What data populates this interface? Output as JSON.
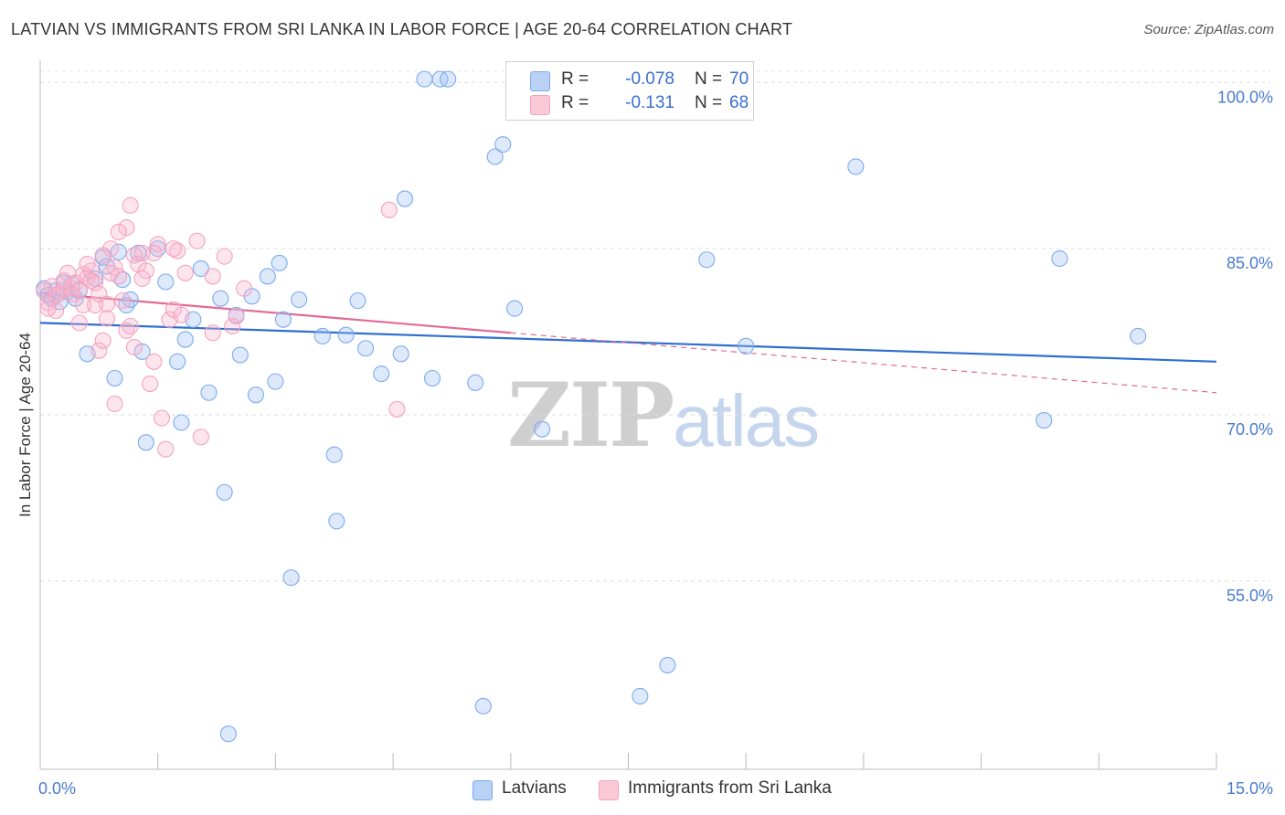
{
  "title": "LATVIAN VS IMMIGRANTS FROM SRI LANKA IN LABOR FORCE | AGE 20-64 CORRELATION CHART",
  "source": "Source: ZipAtlas.com",
  "watermark": {
    "zip": "ZIP",
    "atlas": "atlas"
  },
  "legend": {
    "latvian": {
      "r_label": "R =",
      "r_value": "-0.078",
      "n_label": "N =",
      "n_value": "70"
    },
    "srilanka": {
      "r_label": "R =",
      "r_value": "-0.131",
      "n_label": "N =",
      "n_value": "68"
    }
  },
  "chart_data": {
    "type": "scatter",
    "title": "LATVIAN VS IMMIGRANTS FROM SRI LANKA IN LABOR FORCE | AGE 20-64 CORRELATION CHART",
    "xlabel": "",
    "ylabel": "In Labor Force | Age 20-64",
    "xlim": [
      0,
      15
    ],
    "ylim": [
      38,
      102
    ],
    "x_tick_labels": [
      "0.0%",
      "15.0%"
    ],
    "y_ticks": [
      55,
      70,
      85,
      100
    ],
    "y_tick_labels": [
      "55.0%",
      "70.0%",
      "85.0%",
      "100.0%"
    ],
    "grid": true,
    "legend_position": "bottom-center",
    "series": [
      {
        "name": "Latvians",
        "color": "#7aaaf0",
        "trend": {
          "x": [
            0,
            15
          ],
          "y": [
            78.3,
            74.8
          ],
          "color": "#2f6fcf"
        },
        "points": [
          [
            0.05,
            81.4
          ],
          [
            0.1,
            80.8
          ],
          [
            0.15,
            80.5
          ],
          [
            0.2,
            81.2
          ],
          [
            0.25,
            80.2
          ],
          [
            0.35,
            81.1
          ],
          [
            0.4,
            81.8
          ],
          [
            0.45,
            80.5
          ],
          [
            0.5,
            81.2
          ],
          [
            0.6,
            75.5
          ],
          [
            0.8,
            84.2
          ],
          [
            0.85,
            83.4
          ],
          [
            0.95,
            73.3
          ],
          [
            1.05,
            82.2
          ],
          [
            1.1,
            79.9
          ],
          [
            1.15,
            80.4
          ],
          [
            1.25,
            84.6
          ],
          [
            1.3,
            75.7
          ],
          [
            1.35,
            67.5
          ],
          [
            1.5,
            85.0
          ],
          [
            1.6,
            82.0
          ],
          [
            1.75,
            74.8
          ],
          [
            1.8,
            69.3
          ],
          [
            1.85,
            76.8
          ],
          [
            1.95,
            78.6
          ],
          [
            2.05,
            83.2
          ],
          [
            2.15,
            72.0
          ],
          [
            2.3,
            80.5
          ],
          [
            2.35,
            63.0
          ],
          [
            2.4,
            41.2
          ],
          [
            2.5,
            79.0
          ],
          [
            2.55,
            75.4
          ],
          [
            2.7,
            80.7
          ],
          [
            2.75,
            71.8
          ],
          [
            2.9,
            82.5
          ],
          [
            3.0,
            73.0
          ],
          [
            3.05,
            83.7
          ],
          [
            3.1,
            78.6
          ],
          [
            3.2,
            55.3
          ],
          [
            3.3,
            80.4
          ],
          [
            3.6,
            77.1
          ],
          [
            3.75,
            66.4
          ],
          [
            3.78,
            60.4
          ],
          [
            3.9,
            77.2
          ],
          [
            4.05,
            80.3
          ],
          [
            4.15,
            76.0
          ],
          [
            4.35,
            73.7
          ],
          [
            4.6,
            75.5
          ],
          [
            4.65,
            89.5
          ],
          [
            4.9,
            100.3
          ],
          [
            5.1,
            100.3
          ],
          [
            5.2,
            100.3
          ],
          [
            5.0,
            73.3
          ],
          [
            5.55,
            72.9
          ],
          [
            5.65,
            43.7
          ],
          [
            5.8,
            93.3
          ],
          [
            5.9,
            94.4
          ],
          [
            6.05,
            79.6
          ],
          [
            6.4,
            68.7
          ],
          [
            7.65,
            44.6
          ],
          [
            8.0,
            47.4
          ],
          [
            8.5,
            84.0
          ],
          [
            9.0,
            76.2
          ],
          [
            10.4,
            92.4
          ],
          [
            12.8,
            69.5
          ],
          [
            13.0,
            84.1
          ],
          [
            14.0,
            77.1
          ],
          [
            0.3,
            81.9
          ],
          [
            0.7,
            82.3
          ],
          [
            1.0,
            84.7
          ]
        ]
      },
      {
        "name": "Immigrants from Sri Lanka",
        "color": "#f4a3be",
        "trend": {
          "x": [
            0,
            15
          ],
          "y": [
            81.0,
            72.0
          ],
          "solid_until": 6.0,
          "color": "#e36a94"
        },
        "points": [
          [
            0.05,
            81.2
          ],
          [
            0.1,
            80.1
          ],
          [
            0.15,
            81.6
          ],
          [
            0.2,
            80.8
          ],
          [
            0.25,
            81.0
          ],
          [
            0.3,
            81.3
          ],
          [
            0.35,
            82.8
          ],
          [
            0.4,
            81.4
          ],
          [
            0.45,
            81.9
          ],
          [
            0.5,
            78.3
          ],
          [
            0.55,
            82.7
          ],
          [
            0.6,
            82.4
          ],
          [
            0.65,
            83.0
          ],
          [
            0.7,
            81.9
          ],
          [
            0.75,
            75.8
          ],
          [
            0.8,
            76.7
          ],
          [
            0.85,
            80.0
          ],
          [
            0.9,
            85.0
          ],
          [
            0.95,
            83.3
          ],
          [
            1.0,
            82.5
          ],
          [
            1.05,
            80.3
          ],
          [
            1.1,
            77.6
          ],
          [
            1.15,
            78.0
          ],
          [
            1.2,
            84.4
          ],
          [
            1.25,
            83.6
          ],
          [
            1.3,
            84.6
          ],
          [
            1.35,
            83.0
          ],
          [
            1.4,
            72.8
          ],
          [
            1.45,
            74.8
          ],
          [
            1.5,
            85.4
          ],
          [
            1.55,
            69.7
          ],
          [
            1.6,
            66.9
          ],
          [
            1.65,
            78.6
          ],
          [
            1.7,
            79.5
          ],
          [
            1.75,
            84.8
          ],
          [
            1.8,
            79.0
          ],
          [
            1.85,
            82.8
          ],
          [
            2.05,
            68.0
          ],
          [
            2.2,
            82.5
          ],
          [
            2.35,
            84.3
          ],
          [
            2.5,
            78.9
          ],
          [
            0.95,
            71.0
          ],
          [
            1.1,
            86.9
          ],
          [
            1.15,
            88.9
          ],
          [
            2.2,
            77.4
          ],
          [
            2.45,
            78.0
          ],
          [
            2.0,
            85.7
          ],
          [
            4.45,
            88.5
          ],
          [
            4.55,
            70.5
          ],
          [
            0.2,
            79.4
          ],
          [
            0.3,
            82.1
          ],
          [
            0.4,
            80.9
          ],
          [
            0.5,
            81.3
          ],
          [
            0.55,
            79.9
          ],
          [
            0.6,
            83.6
          ],
          [
            0.65,
            82.1
          ],
          [
            0.7,
            79.9
          ],
          [
            0.75,
            80.9
          ],
          [
            0.8,
            84.4
          ],
          [
            0.85,
            78.7
          ],
          [
            0.9,
            82.8
          ],
          [
            1.0,
            86.5
          ],
          [
            1.2,
            76.1
          ],
          [
            1.3,
            82.3
          ],
          [
            1.45,
            84.6
          ],
          [
            1.7,
            85.0
          ],
          [
            2.6,
            81.4
          ],
          [
            0.1,
            79.6
          ]
        ]
      }
    ]
  }
}
